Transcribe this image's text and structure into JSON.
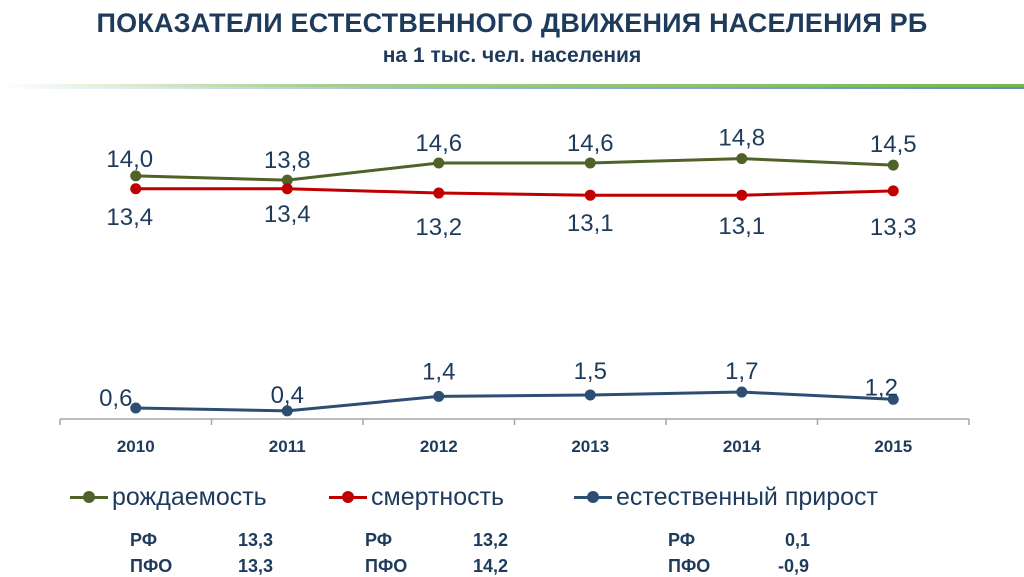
{
  "header": {
    "title": "ПОКАЗАТЕЛИ ЕСТЕСТВЕННОГО ДВИЖЕНИЯ НАСЕЛЕНИЯ РБ",
    "subtitle": "на 1 тыс. чел. населения"
  },
  "colors": {
    "title": "#1f3b5c",
    "birth": "#4f6228",
    "death": "#c00000",
    "growth": "#2e4d73",
    "band_green": "#7ab648",
    "band_blue": "#5b8fc7"
  },
  "chart_data": {
    "type": "line",
    "categories": [
      "2010",
      "2011",
      "2012",
      "2013",
      "2014",
      "2015"
    ],
    "series": [
      {
        "name": "рождаемость",
        "values": [
          14.0,
          13.8,
          14.6,
          14.6,
          14.8,
          14.5
        ],
        "labels": [
          "14,0",
          "13,8",
          "14,6",
          "14,6",
          "14,8",
          "14,5"
        ]
      },
      {
        "name": "смертность",
        "values": [
          13.4,
          13.4,
          13.2,
          13.1,
          13.1,
          13.3
        ],
        "labels": [
          "13,4",
          "13,4",
          "13,2",
          "13,1",
          "13,1",
          "13,3"
        ]
      },
      {
        "name": "естественный прирост",
        "values": [
          0.6,
          0.4,
          1.4,
          1.5,
          1.7,
          1.2
        ],
        "labels": [
          "0,6",
          "0,4",
          "1,4",
          "1,5",
          "1,7",
          "1,2"
        ]
      }
    ],
    "grid": false,
    "legend": "bottom"
  },
  "comparison": {
    "birth": [
      {
        "region": "РФ",
        "value": "13,3"
      },
      {
        "region": "ПФО",
        "value": "13,3"
      }
    ],
    "death": [
      {
        "region": "РФ",
        "value": "13,2"
      },
      {
        "region": "ПФО",
        "value": "14,2"
      }
    ],
    "growth": [
      {
        "region": "РФ",
        "value": "0,1"
      },
      {
        "region": "ПФО",
        "value": "-0,9"
      }
    ]
  }
}
